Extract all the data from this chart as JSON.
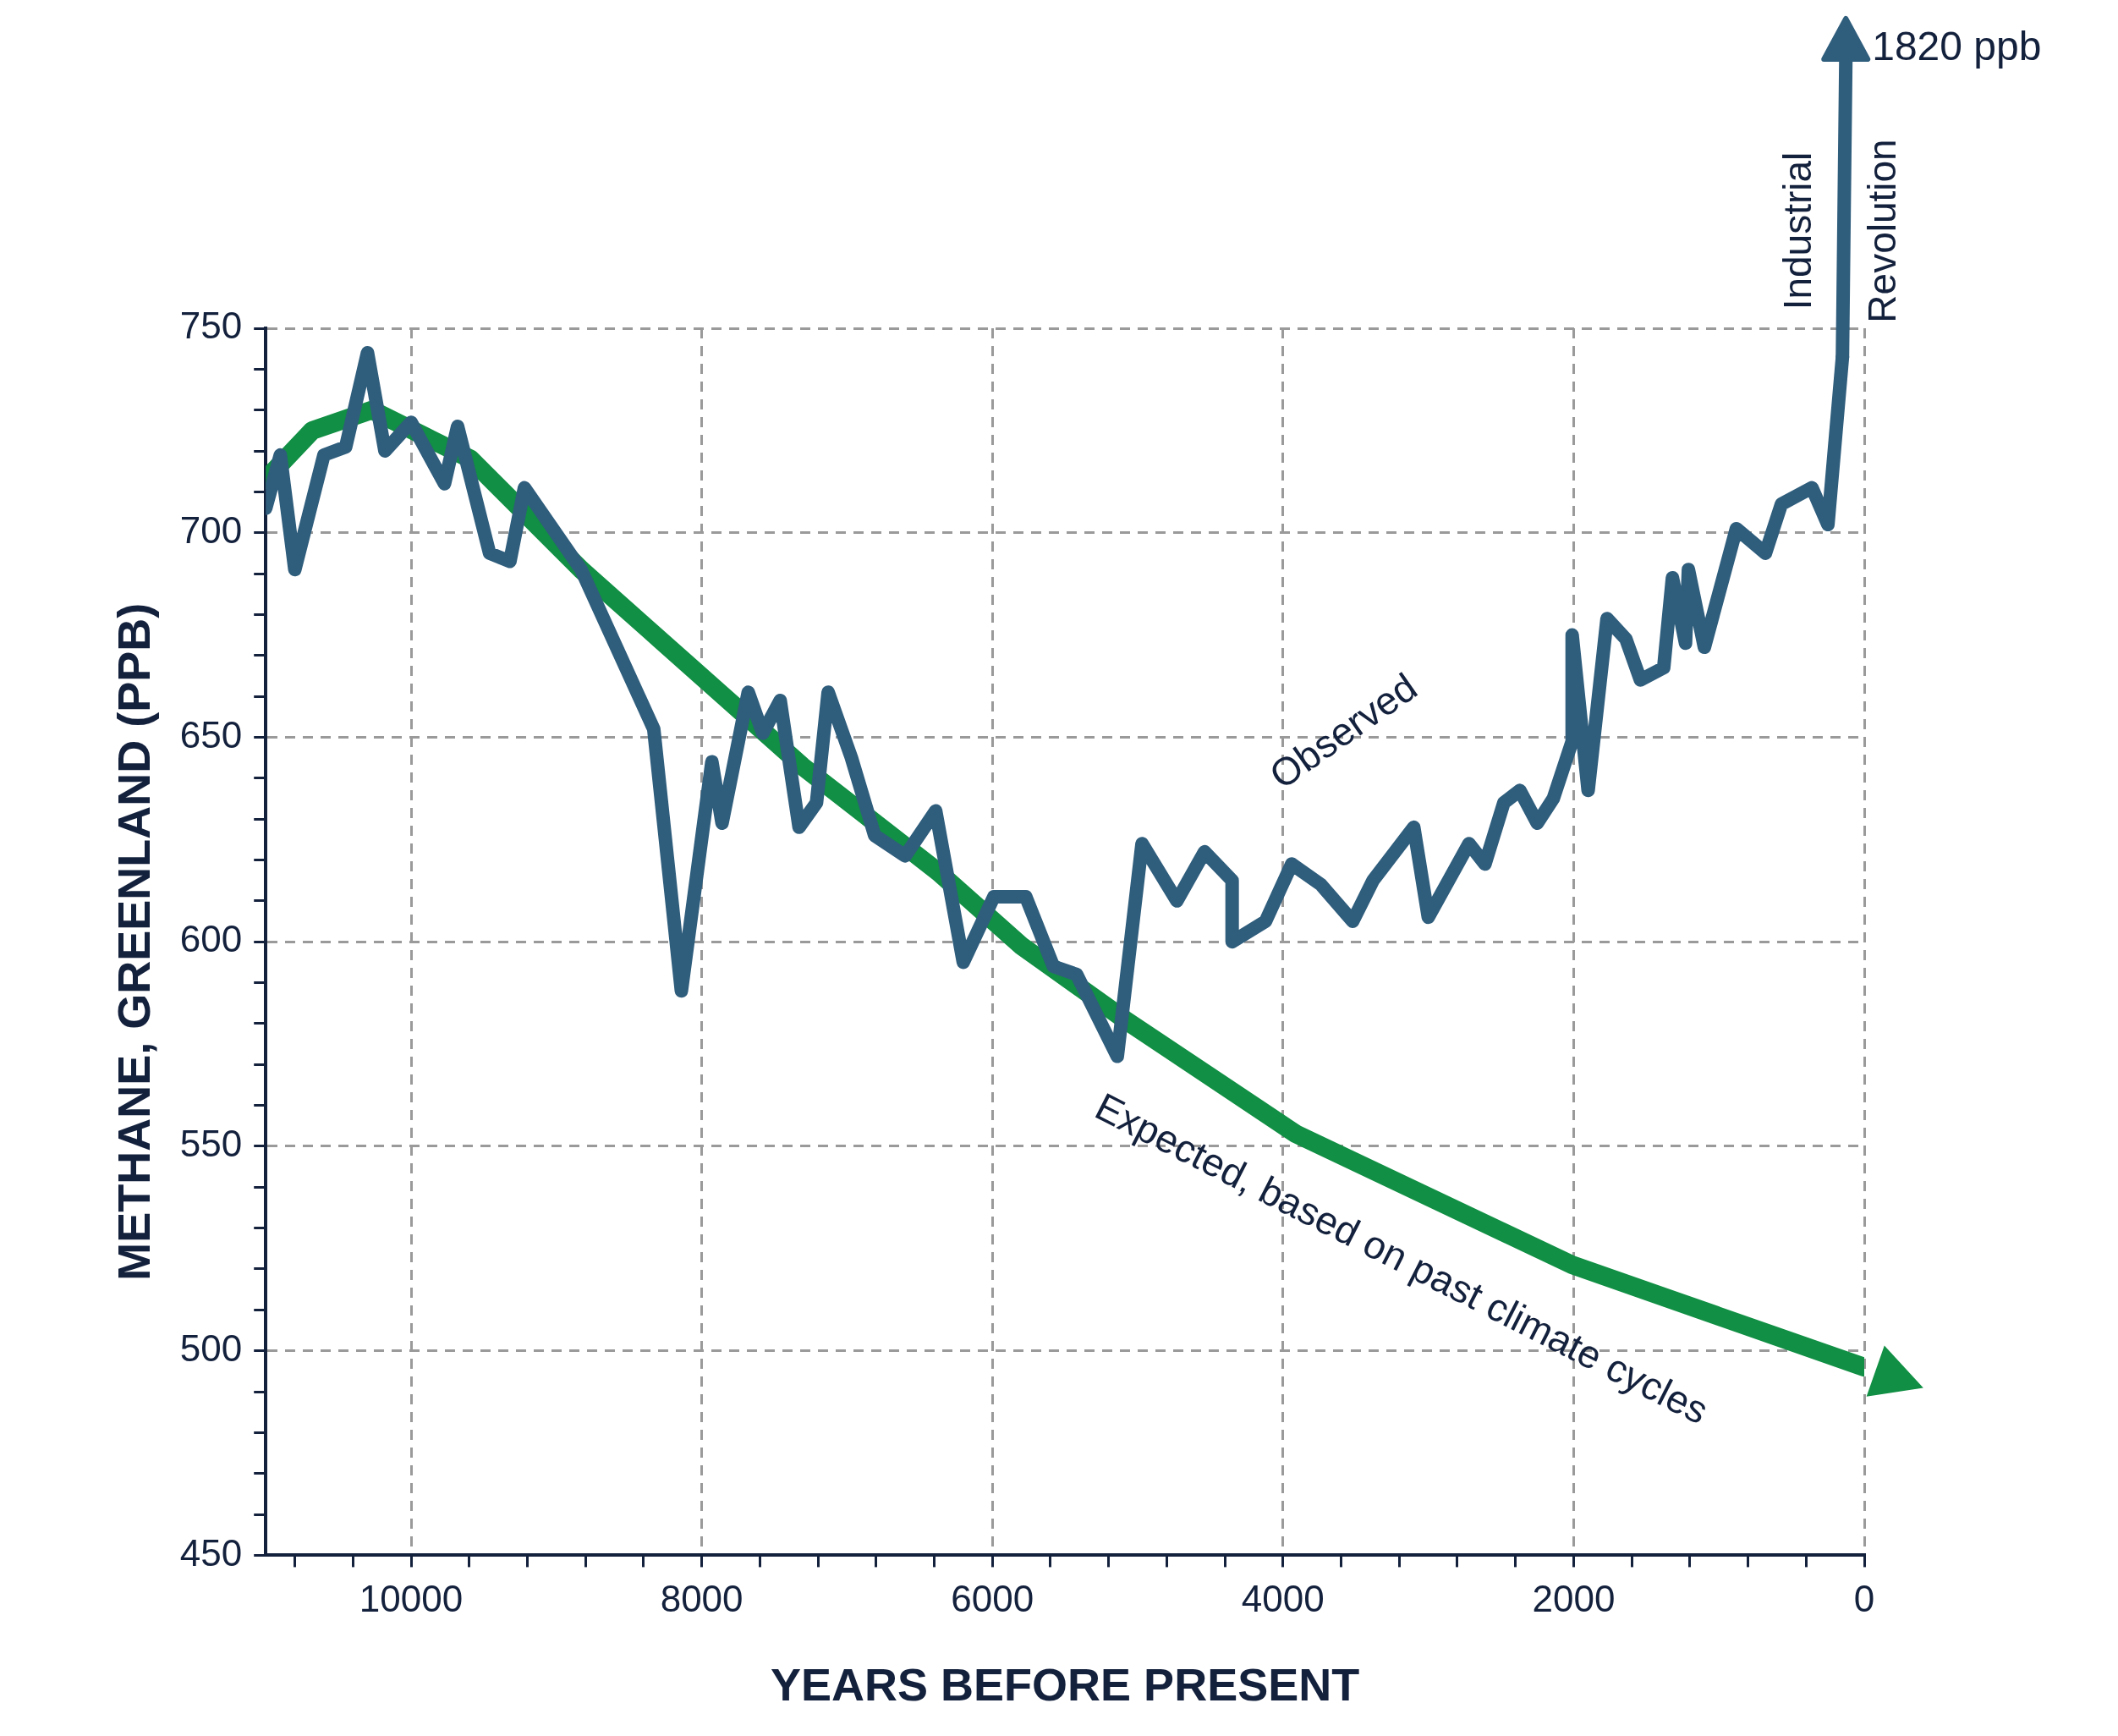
{
  "chart_data": {
    "type": "line",
    "xlabel": "YEARS BEFORE PRESENT",
    "ylabel": "METHANE, GREENLAND (PPB)",
    "xlim": [
      11000,
      0
    ],
    "xticks": [
      {
        "value": 10800,
        "label": null
      },
      {
        "value": 10400,
        "label": null
      },
      10000,
      {
        "value": 9600,
        "label": null
      },
      {
        "value": 9200,
        "label": null
      },
      {
        "value": 8800,
        "label": null
      },
      {
        "value": 8400,
        "label": null
      },
      8000,
      {
        "value": 7600,
        "label": null
      },
      {
        "value": 7200,
        "label": null
      },
      {
        "value": 6800,
        "label": null
      },
      {
        "value": 6400,
        "label": null
      },
      6000,
      {
        "value": 5600,
        "label": null
      },
      {
        "value": 5200,
        "label": null
      },
      {
        "value": 4800,
        "label": null
      },
      {
        "value": 4400,
        "label": null
      },
      4000,
      {
        "value": 3600,
        "label": null
      },
      {
        "value": 3200,
        "label": null
      },
      {
        "value": 2800,
        "label": null
      },
      {
        "value": 2400,
        "label": null
      },
      2000,
      {
        "value": 1600,
        "label": null
      },
      {
        "value": 1200,
        "label": null
      },
      {
        "value": 800,
        "label": null
      },
      {
        "value": 400,
        "label": null
      },
      0
    ],
    "ylim": [
      450,
      750
    ],
    "yticks": [
      450,
      {
        "value": 460,
        "label": null
      },
      {
        "value": 470,
        "label": null
      },
      {
        "value": 480,
        "label": null
      },
      {
        "value": 490,
        "label": null
      },
      500,
      {
        "value": 510,
        "label": null
      },
      {
        "value": 520,
        "label": null
      },
      {
        "value": 530,
        "label": null
      },
      {
        "value": 540,
        "label": null
      },
      550,
      {
        "value": 560,
        "label": null
      },
      {
        "value": 570,
        "label": null
      },
      {
        "value": 580,
        "label": null
      },
      {
        "value": 590,
        "label": null
      },
      600,
      {
        "value": 610,
        "label": null
      },
      {
        "value": 620,
        "label": null
      },
      {
        "value": 630,
        "label": null
      },
      {
        "value": 640,
        "label": null
      },
      650,
      {
        "value": 660,
        "label": null
      },
      {
        "value": 670,
        "label": null
      },
      {
        "value": 680,
        "label": null
      },
      {
        "value": 690,
        "label": null
      },
      700,
      {
        "value": 710,
        "label": null
      },
      {
        "value": 720,
        "label": null
      },
      {
        "value": 730,
        "label": null
      },
      {
        "value": 740,
        "label": null
      },
      750
    ],
    "grid": true,
    "legend": false,
    "marker": "none",
    "line_style": "solid",
    "series": [
      {
        "color": "#2f5d7c",
        "x": [
          11000,
          10900,
          10800,
          10600,
          10450,
          10300,
          10180,
          10000,
          9770,
          9680,
          9460,
          9320,
          9220,
          8830,
          8330,
          8140,
          7930,
          7860,
          7680,
          7580,
          7460,
          7330,
          7210,
          7130,
          6970,
          6810,
          6600,
          6390,
          6200,
          5990,
          5770,
          5580,
          5420,
          5140,
          4970,
          4730,
          4540,
          4350,
          4350,
          4120,
          3940,
          3740,
          3520,
          3380,
          3100,
          3000,
          2720,
          2610,
          2480,
          2370,
          2250,
          2140,
          2010,
          2010,
          1900,
          1770,
          1640,
          1540,
          1380,
          1320,
          1230,
          1210,
          1100,
          880,
          680,
          570,
          360,
          250,
          150
        ],
        "values": [
          706,
          719,
          691,
          719,
          721,
          744,
          720,
          727,
          712,
          726,
          695,
          693,
          711,
          691,
          652,
          588,
          644,
          629,
          661,
          651,
          659,
          628,
          634,
          661,
          645,
          626,
          621,
          632,
          595,
          611,
          611,
          594,
          592,
          572,
          624,
          610,
          622,
          615,
          600,
          605,
          619,
          614,
          605,
          615,
          628,
          606,
          624,
          619,
          634,
          637,
          629,
          635,
          649,
          675,
          637,
          679,
          674,
          664,
          667,
          689,
          673,
          691,
          672,
          701,
          695,
          707,
          711,
          702,
          743
        ]
      },
      {
        "color": "#118f44",
        "x": [
          11000,
          10680,
          10270,
          9590,
          8830,
          8070,
          7310,
          6370,
          5800,
          5090,
          3910,
          2010,
          0
        ],
        "values": [
          713,
          725,
          730,
          718,
          691,
          667,
          643,
          617,
          599,
          581,
          553,
          521,
          496
        ]
      }
    ],
    "annotations": [
      "Observed",
      "Expected, based on past climate cycles",
      "Industrial Revolution",
      "1820 ppb"
    ]
  }
}
